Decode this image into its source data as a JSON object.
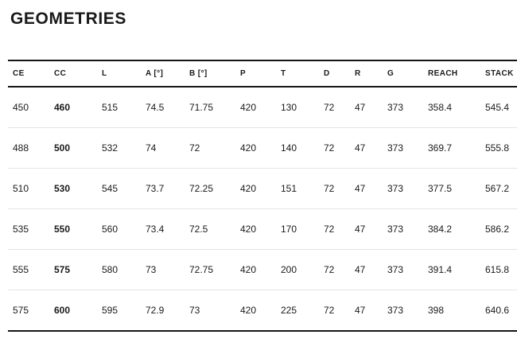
{
  "page": {
    "title": "GEOMETRIES"
  },
  "colors": {
    "background": "#ffffff",
    "text": "#1a1a1a",
    "heavy_rule": "#151515",
    "light_rule": "#e4e4e4"
  },
  "chart_data": {
    "type": "table",
    "title": "GEOMETRIES",
    "columns": [
      "CE",
      "CC",
      "L",
      "A [°]",
      "B [°]",
      "P",
      "T",
      "D",
      "R",
      "G",
      "REACH",
      "STACK"
    ],
    "emphasized_column": "CC",
    "rows": [
      [
        "450",
        "460",
        "515",
        "74.5",
        "71.75",
        "420",
        "130",
        "72",
        "47",
        "373",
        "358.4",
        "545.4"
      ],
      [
        "488",
        "500",
        "532",
        "74",
        "72",
        "420",
        "140",
        "72",
        "47",
        "373",
        "369.7",
        "555.8"
      ],
      [
        "510",
        "530",
        "545",
        "73.7",
        "72.25",
        "420",
        "151",
        "72",
        "47",
        "373",
        "377.5",
        "567.2"
      ],
      [
        "535",
        "550",
        "560",
        "73.4",
        "72.5",
        "420",
        "170",
        "72",
        "47",
        "373",
        "384.2",
        "586.2"
      ],
      [
        "555",
        "575",
        "580",
        "73",
        "72.75",
        "420",
        "200",
        "72",
        "47",
        "373",
        "391.4",
        "615.8"
      ],
      [
        "575",
        "600",
        "595",
        "72.9",
        "73",
        "420",
        "225",
        "72",
        "47",
        "373",
        "398",
        "640.6"
      ]
    ]
  }
}
